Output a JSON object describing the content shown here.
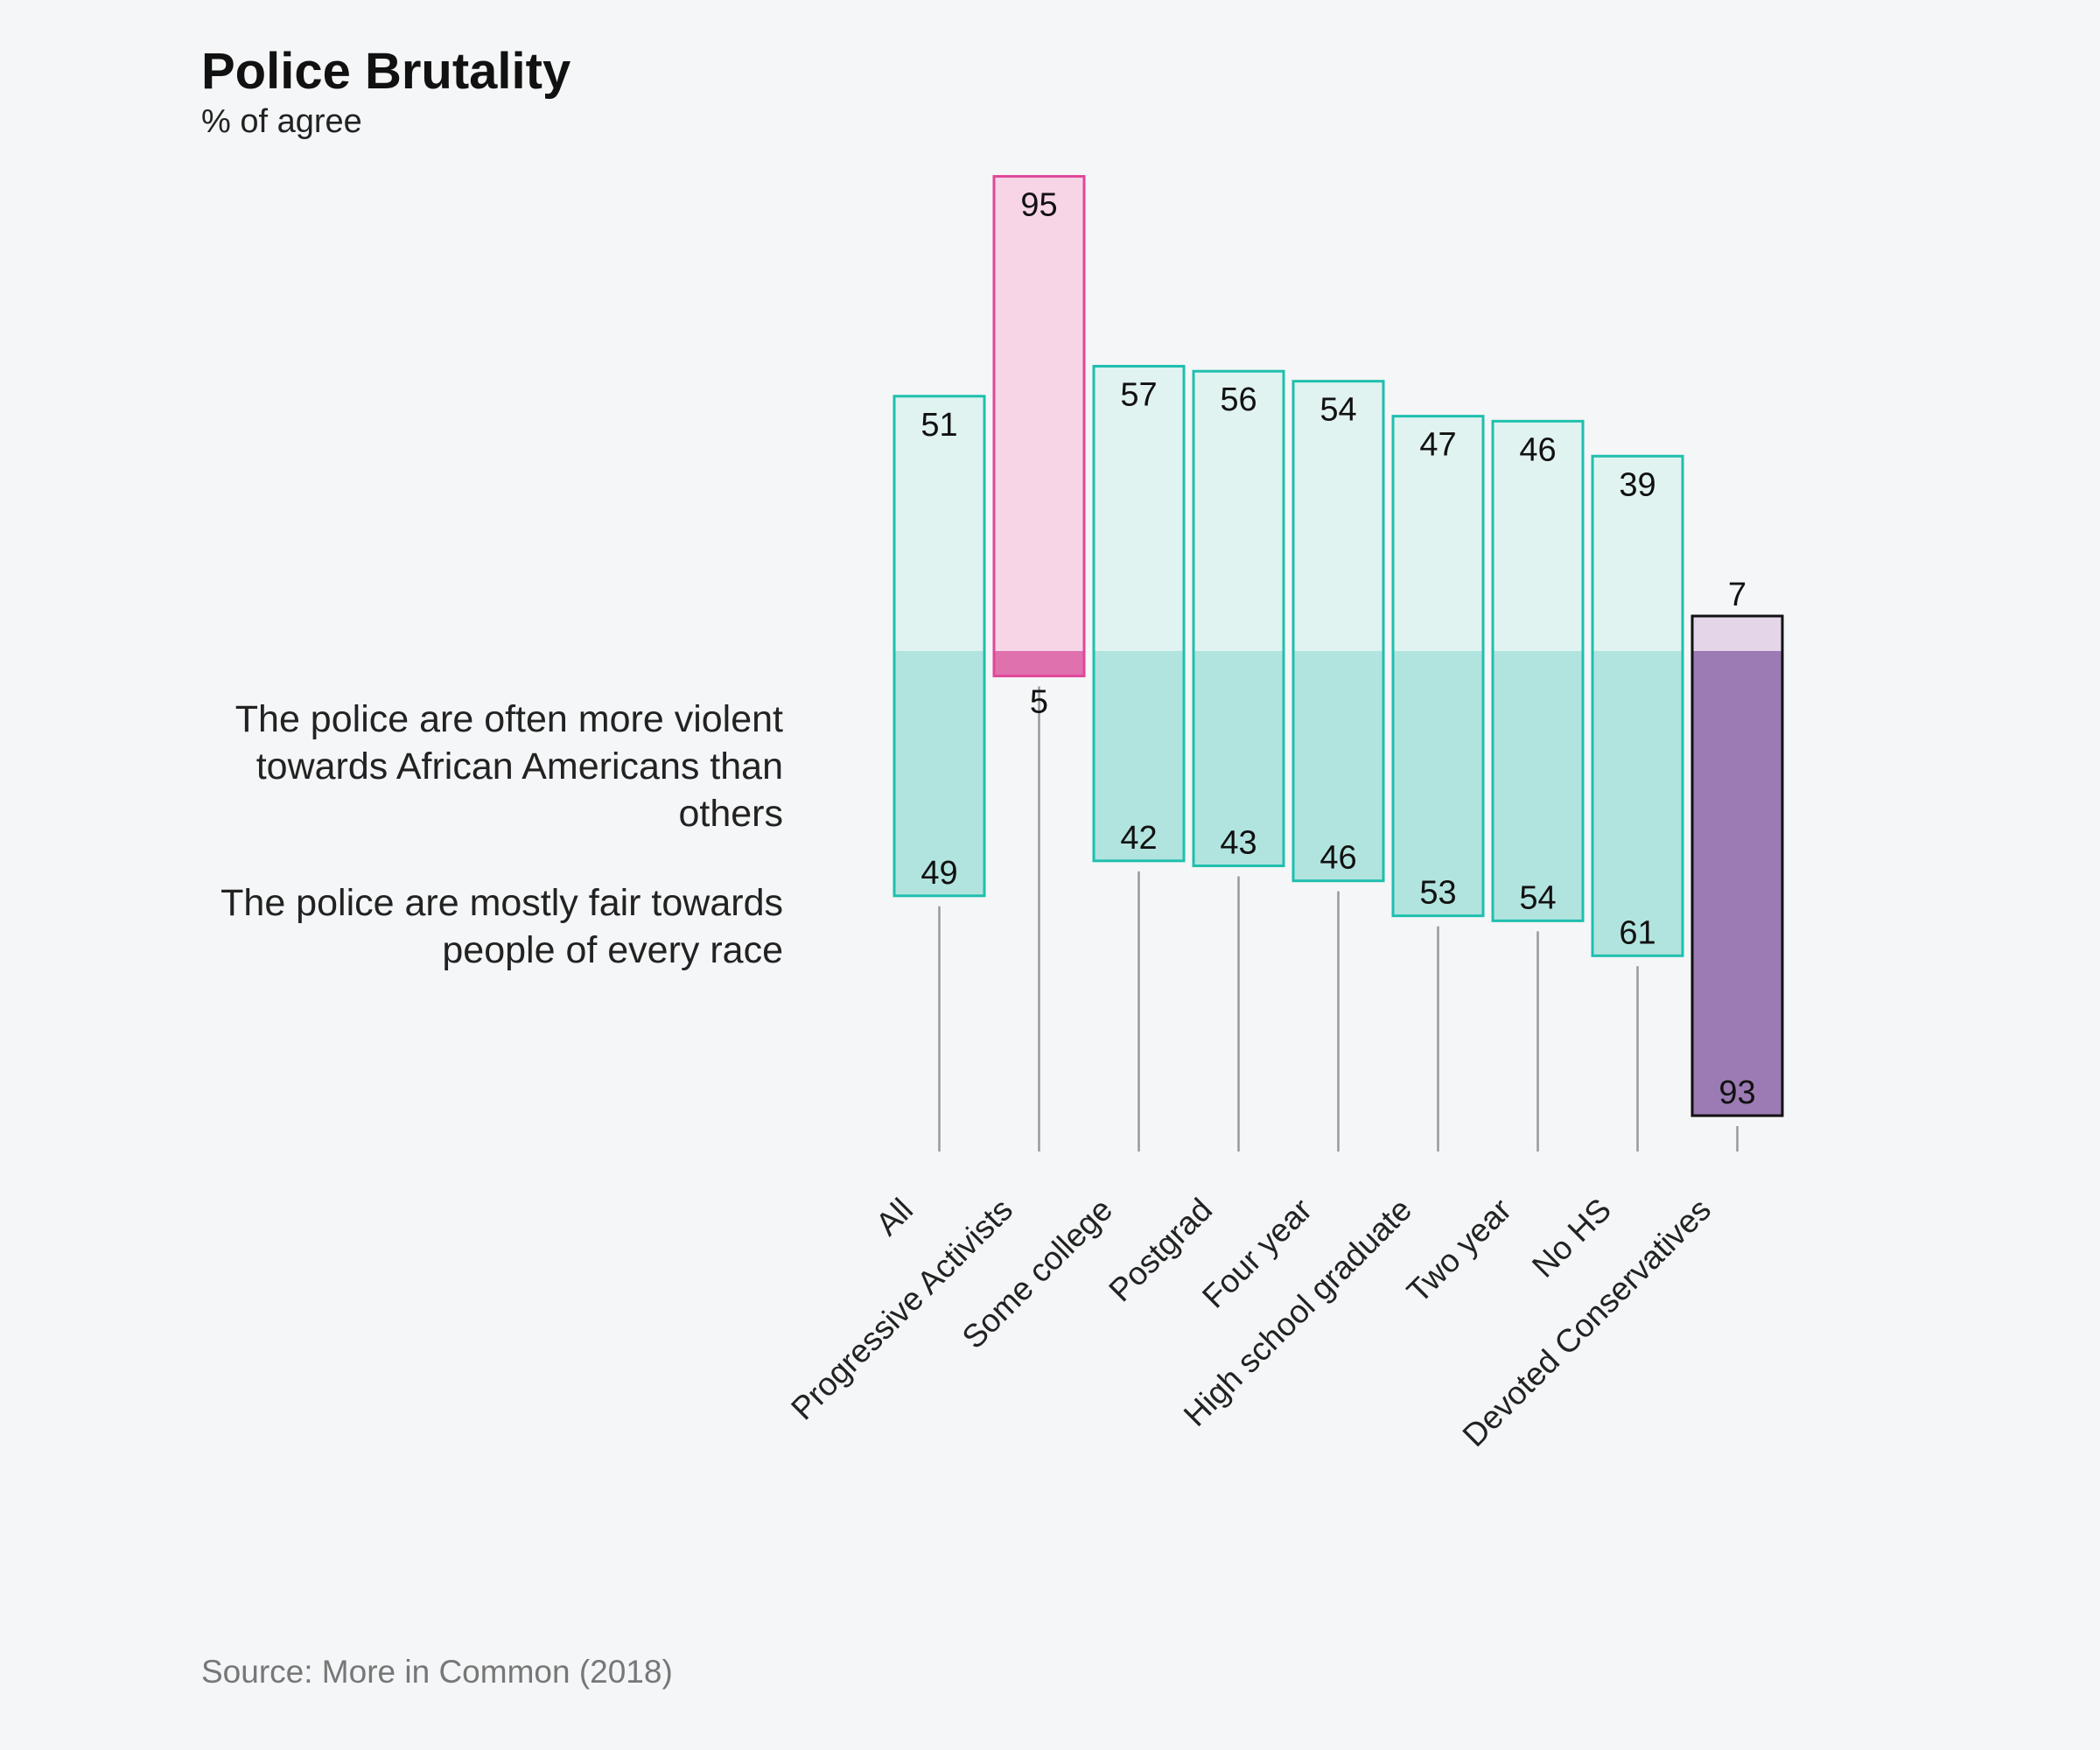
{
  "chart_data": {
    "type": "bar",
    "title": "Police Brutality",
    "subtitle": "% of agree",
    "source": "Source: More in Common (2018)",
    "series_labels": {
      "upper": "The police are often more violent towards African Americans than others",
      "lower": "The police are mostly fair towards people of every race"
    },
    "categories": [
      "All",
      "Progressive Activists",
      "Some college",
      "Postgrad",
      "Four year",
      "High school graduate",
      "Two year",
      "No HS",
      "Devoted Conservatives"
    ],
    "series": [
      {
        "name": "The police are often more violent towards African Americans than others",
        "values": [
          51,
          95,
          57,
          56,
          54,
          47,
          46,
          39,
          7
        ]
      },
      {
        "name": "The police are mostly fair towards people of every race",
        "values": [
          49,
          5,
          42,
          43,
          46,
          53,
          54,
          61,
          93
        ]
      }
    ],
    "ylim": [
      0,
      100
    ],
    "grid": false,
    "colors": {
      "default_upper": "#e0f3f1",
      "default_lower": "#b2e4df",
      "default_border": "#1fbfae",
      "progressive_upper": "#f7d5e7",
      "progressive_lower": "#df72ae",
      "progressive_border": "#e0479b",
      "conservative_upper": "#e4d5e8",
      "conservative_lower": "#9c7bb4",
      "conservative_border": "#111111"
    }
  }
}
